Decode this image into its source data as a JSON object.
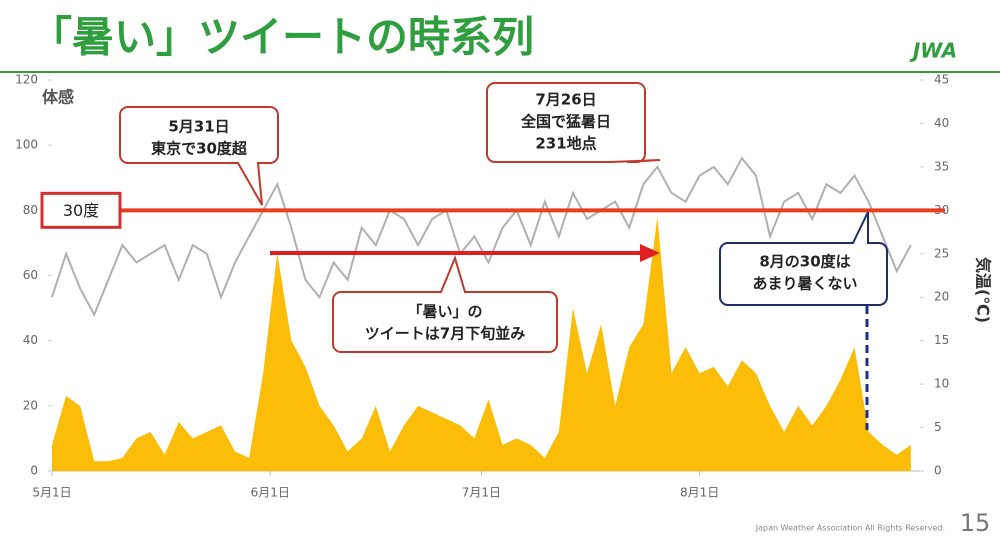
{
  "chart_data": {
    "type": "area-line",
    "title": "「暑い」ツイートの時系列",
    "ylabel": "体感",
    "y2label": "気温(℃)",
    "x": [
      0,
      2,
      4,
      6,
      8,
      10,
      12,
      14,
      16,
      18,
      20,
      22,
      24,
      26,
      28,
      30,
      32,
      34,
      36,
      38,
      40,
      42,
      44,
      46,
      48,
      50,
      52,
      54,
      56,
      58,
      60,
      62,
      64,
      66,
      68,
      70,
      72,
      74,
      76,
      78,
      80,
      82,
      84,
      86,
      88,
      90,
      92,
      94,
      96,
      98,
      100,
      102,
      104,
      106,
      108,
      110,
      112,
      114,
      116,
      118,
      120,
      122
    ],
    "xlim": [
      0,
      123.3
    ],
    "xticks": [
      {
        "value": 0,
        "label": "5月1日"
      },
      {
        "value": 31,
        "label": "6月1日"
      },
      {
        "value": 61,
        "label": "7月1日"
      },
      {
        "value": 92,
        "label": "8月1日"
      }
    ],
    "ylim": [
      0,
      120
    ],
    "yticks": [
      0,
      20,
      40,
      60,
      80,
      100,
      120
    ],
    "y2lim": [
      0,
      45
    ],
    "y2ticks": [
      0,
      5,
      10,
      15,
      20,
      25,
      30,
      35,
      40,
      45
    ],
    "series": [
      {
        "name": "「暑い」ツイート",
        "color": "#fbbd08",
        "values": [
          8,
          23,
          20,
          3,
          3,
          4,
          10,
          12,
          5,
          15,
          10,
          12,
          14,
          6,
          4,
          30,
          67,
          40,
          32,
          20,
          14,
          6,
          10,
          20,
          6,
          14,
          20,
          18,
          16,
          14,
          10,
          22,
          8,
          10,
          8,
          4,
          12,
          50,
          30,
          45,
          20,
          38,
          45,
          78,
          30,
          38,
          30,
          32,
          26,
          34,
          30,
          20,
          12,
          20,
          14,
          20,
          28,
          38,
          12,
          8,
          5,
          8
        ]
      },
      {
        "name": "気温",
        "color": "#b0b0b0",
        "axis": "y2",
        "values": [
          20,
          25,
          21,
          18,
          22,
          26,
          24,
          25,
          26,
          22,
          26,
          25,
          20,
          24,
          27,
          30,
          33,
          28,
          22,
          20,
          24,
          22,
          28,
          26,
          30,
          29,
          26,
          29,
          30,
          25,
          27,
          24,
          28,
          30,
          26,
          31,
          27,
          32,
          29,
          30,
          31,
          28,
          33,
          35,
          32,
          31,
          34,
          35,
          33,
          36,
          34,
          27,
          31,
          32,
          29,
          33,
          32,
          34,
          31,
          27,
          23,
          26
        ]
      }
    ],
    "threshold": {
      "value": 30,
      "label": "30度"
    },
    "annotations": [
      [
        "5月31日",
        "東京で30度超"
      ],
      [
        "7月26日",
        "全国で猛暑日",
        "231地点"
      ],
      [
        "「暑い」の",
        "ツイートは7月下旬並み"
      ],
      [
        "8月の30度は",
        "あまり暑くない"
      ]
    ],
    "footer": "Japan Weather Association All Rights Reserved.",
    "page": "15",
    "logo": "JWA"
  }
}
